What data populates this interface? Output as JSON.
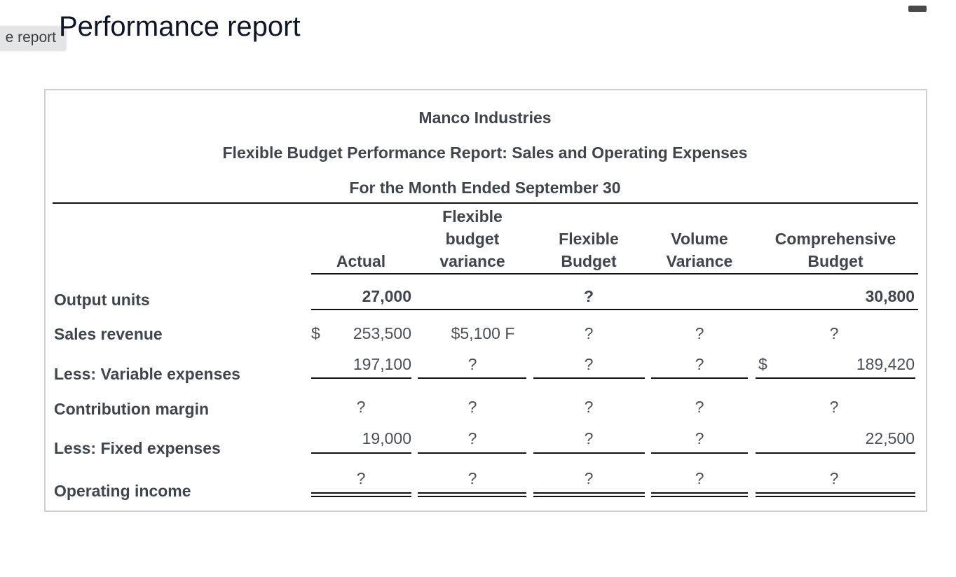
{
  "tab_label": "e report",
  "page_title": "Performance report",
  "report": {
    "company": "Manco Industries",
    "title": "Flexible Budget Performance Report: Sales and Operating Expenses",
    "period": "For the Month Ended September 30",
    "columns": [
      "Actual",
      "Flexible budget variance",
      "Flexible Budget",
      "Volume Variance",
      "Comprehensive Budget"
    ],
    "col_lines": [
      [
        "Actual"
      ],
      [
        "Flexible",
        "budget",
        "variance"
      ],
      [
        "Flexible",
        "Budget"
      ],
      [
        "Volume",
        "Variance"
      ],
      [
        "Comprehensive",
        "Budget"
      ]
    ],
    "rows": [
      {
        "label": "Output units",
        "cells": [
          "27,000",
          "",
          "?",
          "",
          "30,800"
        ]
      },
      {
        "label": "Sales revenue",
        "currency": "$",
        "cells": [
          "253,500",
          "$5,100 F",
          "?",
          "?",
          "?"
        ]
      },
      {
        "label": "Less: Variable expenses",
        "cells": [
          "197,100",
          "?",
          "?",
          "?",
          "189,420"
        ],
        "comp_currency": "$"
      },
      {
        "label": "Contribution margin",
        "cells": [
          "?",
          "?",
          "?",
          "?",
          "?"
        ]
      },
      {
        "label": "Less: Fixed expenses",
        "cells": [
          "19,000",
          "?",
          "?",
          "?",
          "22,500"
        ]
      },
      {
        "label": "Operating income",
        "cells": [
          "?",
          "?",
          "?",
          "?",
          "?"
        ]
      }
    ]
  }
}
